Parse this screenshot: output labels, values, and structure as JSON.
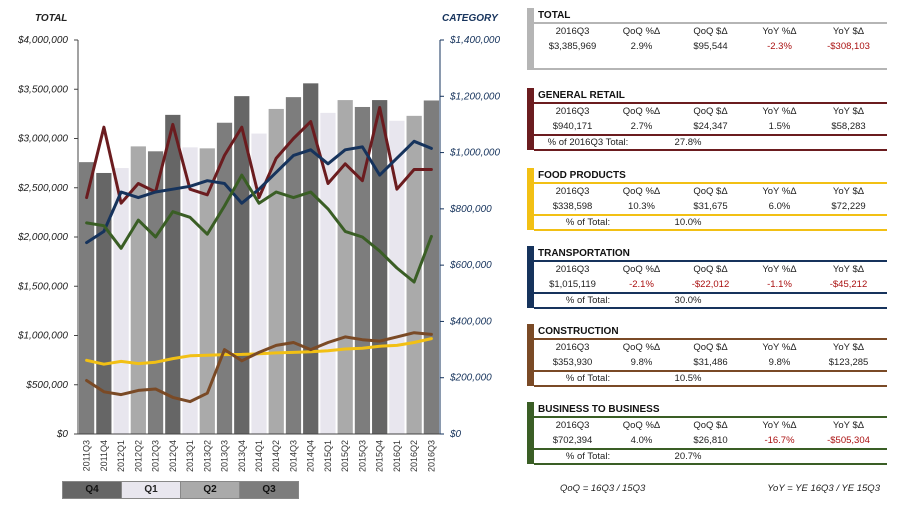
{
  "chart_data": {
    "type": "bar+line",
    "left_axis_title": "TOTAL",
    "right_axis_title": "CATEGORY",
    "left_ticks": [
      "$0",
      "$500,000",
      "$1,000,000",
      "$1,500,000",
      "$2,000,000",
      "$2,500,000",
      "$3,000,000",
      "$3,500,000",
      "$4,000,000"
    ],
    "right_ticks": [
      "$0",
      "$200,000",
      "$400,000",
      "$600,000",
      "$800,000",
      "$1,000,000",
      "$1,200,000",
      "$1,400,000"
    ],
    "left_ylim": [
      0,
      4000000
    ],
    "right_ylim": [
      0,
      1400000
    ],
    "categories": [
      "2011Q3",
      "2011Q4",
      "2012Q1",
      "2012Q2",
      "2012Q3",
      "2012Q4",
      "2013Q1",
      "2013Q2",
      "2013Q3",
      "2013Q4",
      "2014Q1",
      "2014Q2",
      "2014Q3",
      "2014Q4",
      "2015Q1",
      "2015Q2",
      "2015Q3",
      "2015Q4",
      "2016Q1",
      "2016Q2",
      "2016Q3"
    ],
    "bar_quarters": [
      "Q3",
      "Q4",
      "Q1",
      "Q2",
      "Q3",
      "Q4",
      "Q1",
      "Q2",
      "Q3",
      "Q4",
      "Q1",
      "Q2",
      "Q3",
      "Q4",
      "Q1",
      "Q2",
      "Q3",
      "Q4",
      "Q1",
      "Q2",
      "Q3"
    ],
    "bars_total": [
      2760000,
      2650000,
      2700000,
      2920000,
      2870000,
      3240000,
      2910000,
      2900000,
      3160000,
      3430000,
      3050000,
      3300000,
      3420000,
      3560000,
      3260000,
      3390000,
      3320000,
      3390000,
      3180000,
      3230000,
      3386000
    ],
    "series": [
      {
        "name": "GENERAL RETAIL",
        "color": "#6b1c1f",
        "values": [
          840000,
          1090000,
          820000,
          890000,
          860000,
          1100000,
          870000,
          850000,
          990000,
          1090000,
          840000,
          980000,
          1050000,
          1110000,
          890000,
          960000,
          900000,
          1160000,
          870000,
          940000,
          940000
        ]
      },
      {
        "name": "FOOD PRODUCTS",
        "color": "#f2c014",
        "values": [
          262000,
          248000,
          258000,
          250000,
          255000,
          268000,
          278000,
          280000,
          282000,
          283000,
          285000,
          288000,
          290000,
          292000,
          296000,
          302000,
          305000,
          312000,
          315000,
          325000,
          339000
        ]
      },
      {
        "name": "TRANSPORTATION",
        "color": "#16335c",
        "values": [
          680000,
          720000,
          860000,
          840000,
          860000,
          870000,
          880000,
          900000,
          890000,
          820000,
          870000,
          930000,
          990000,
          1010000,
          960000,
          1010000,
          1020000,
          920000,
          980000,
          1040000,
          1015000
        ]
      },
      {
        "name": "CONSTRUCTION",
        "color": "#7a4a26",
        "values": [
          190000,
          150000,
          140000,
          155000,
          160000,
          130000,
          115000,
          145000,
          300000,
          260000,
          290000,
          315000,
          325000,
          300000,
          325000,
          345000,
          335000,
          330000,
          345000,
          360000,
          354000
        ]
      },
      {
        "name": "BUSINESS TO BUSINESS",
        "color": "#3a5e25",
        "values": [
          750000,
          740000,
          660000,
          760000,
          700000,
          790000,
          770000,
          710000,
          810000,
          920000,
          820000,
          860000,
          840000,
          860000,
          800000,
          720000,
          700000,
          650000,
          590000,
          540000,
          702000
        ]
      }
    ],
    "legend": [
      "Q4",
      "Q1",
      "Q2",
      "Q3"
    ],
    "grid": false
  },
  "legend_colors": {
    "Q4": "#666666",
    "Q1": "#e8e6ee",
    "Q2": "#aaaaaa",
    "Q3": "#7d7d7d"
  },
  "panels": [
    {
      "title": "TOTAL",
      "color": "#b5b5b5",
      "headers": [
        "2016Q3",
        "QoQ %Δ",
        "QoQ $Δ",
        "YoY %Δ",
        "YoY $Δ"
      ],
      "values": [
        "$3,385,969",
        "2.9%",
        "$95,544",
        "-2.3%",
        "-$308,103"
      ],
      "sub_label": "",
      "sub_value": ""
    },
    {
      "title": "GENERAL RETAIL",
      "color": "#6b1c1f",
      "headers": [
        "2016Q3",
        "QoQ %Δ",
        "QoQ $Δ",
        "YoY %Δ",
        "YoY $Δ"
      ],
      "values": [
        "$940,171",
        "2.7%",
        "$24,347",
        "1.5%",
        "$58,283"
      ],
      "sub_label": "% of 2016Q3 Total:",
      "sub_value": "27.8%"
    },
    {
      "title": "FOOD PRODUCTS",
      "color": "#f2c014",
      "headers": [
        "2016Q3",
        "QoQ %Δ",
        "QoQ $Δ",
        "YoY %Δ",
        "YoY $Δ"
      ],
      "values": [
        "$338,598",
        "10.3%",
        "$31,675",
        "6.0%",
        "$72,229"
      ],
      "sub_label": "% of Total:",
      "sub_value": "10.0%"
    },
    {
      "title": "TRANSPORTATION",
      "color": "#16335c",
      "headers": [
        "2016Q3",
        "QoQ %Δ",
        "QoQ $Δ",
        "YoY %Δ",
        "YoY $Δ"
      ],
      "values": [
        "$1,015,119",
        "-2.1%",
        "-$22,012",
        "-1.1%",
        "-$45,212"
      ],
      "sub_label": "% of Total:",
      "sub_value": "30.0%"
    },
    {
      "title": "CONSTRUCTION",
      "color": "#7a4a26",
      "headers": [
        "2016Q3",
        "QoQ %Δ",
        "QoQ $Δ",
        "YoY %Δ",
        "YoY $Δ"
      ],
      "values": [
        "$353,930",
        "9.8%",
        "$31,486",
        "9.8%",
        "$123,285"
      ],
      "sub_label": "% of Total:",
      "sub_value": "10.5%"
    },
    {
      "title": "BUSINESS TO BUSINESS",
      "color": "#3a5e25",
      "headers": [
        "2016Q3",
        "QoQ %Δ",
        "QoQ $Δ",
        "YoY %Δ",
        "YoY $Δ"
      ],
      "values": [
        "$702,394",
        "4.0%",
        "$26,810",
        "-16.7%",
        "-$505,304"
      ],
      "sub_label": "% of Total:",
      "sub_value": "20.7%"
    }
  ],
  "footnotes": {
    "qoq": "QoQ = 16Q3 / 15Q3",
    "yoy": "YoY = YE 16Q3 / YE 15Q3"
  },
  "axis_colors": {
    "left": "#222222",
    "right": "#16335c"
  }
}
